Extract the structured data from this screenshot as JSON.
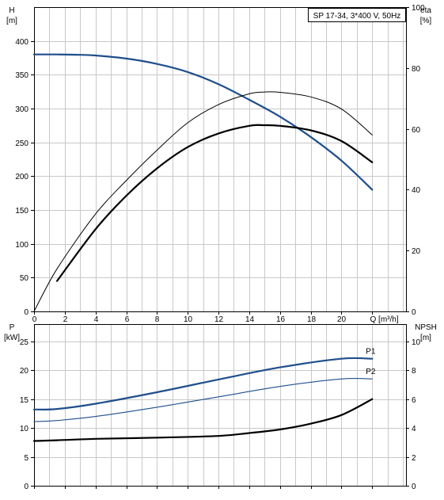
{
  "chart_data": [
    {
      "type": "line",
      "title": "SP 17-34, 3*400 V, 50Hz",
      "xlabel": "Q [m³/h]",
      "x_ticks": [
        0,
        2,
        4,
        6,
        8,
        10,
        12,
        14,
        16,
        18,
        20
      ],
      "x_tick_labels": [
        "0",
        "2",
        "4",
        "6",
        "8",
        "10",
        "12",
        "14",
        "16",
        "18",
        "20",
        "Q [m³/h]"
      ],
      "xlim": [
        0,
        24.2
      ],
      "left_axis": {
        "label_top": "H",
        "label_unit": "[m]",
        "ylim": [
          0,
          450
        ],
        "ticks": [
          0,
          50,
          100,
          150,
          200,
          250,
          300,
          350,
          400
        ]
      },
      "right_axis": {
        "label_top": "eta",
        "label_unit": "[%]",
        "ylim": [
          0,
          100
        ],
        "range_max_shown": 100,
        "ticks": [
          0,
          20,
          40,
          60,
          80,
          100
        ]
      },
      "grid": true,
      "series": [
        {
          "axis": "left",
          "color": "#1f4e8c",
          "width": 2.2,
          "x": [
            0,
            1.5,
            3,
            4,
            6,
            8,
            10,
            12,
            14,
            16,
            18,
            20,
            22
          ],
          "y": [
            380,
            380,
            379.5,
            378.5,
            374,
            366,
            354,
            336,
            313,
            288,
            258,
            223,
            180
          ]
        },
        {
          "axis": "right",
          "color": "#000000",
          "width": 1.0,
          "x": [
            0,
            1.5,
            4,
            6,
            8,
            10,
            12,
            14,
            15,
            16,
            18,
            20,
            22
          ],
          "y": [
            0,
            14,
            32,
            43,
            53,
            62,
            68,
            71.5,
            72.1,
            72,
            70.5,
            66.5,
            58
          ]
        },
        {
          "axis": "right",
          "color": "#000000",
          "width": 2.2,
          "x": [
            1.5,
            4,
            6,
            8,
            10,
            12,
            14,
            15,
            16,
            18,
            20,
            22
          ],
          "y": [
            10,
            27,
            38,
            47,
            54,
            58.5,
            61,
            61.2,
            61,
            59.5,
            56,
            49
          ]
        }
      ]
    },
    {
      "type": "line",
      "xlim": [
        0,
        24.2
      ],
      "left_axis": {
        "label_top": "P",
        "label_unit": "[kW]",
        "ylim": [
          0,
          28
        ],
        "ticks": [
          0,
          5,
          10,
          15,
          20,
          25
        ]
      },
      "right_axis": {
        "label_top": "NPSH",
        "label_unit": "[m]",
        "ylim": [
          0,
          11.2
        ],
        "ticks": [
          0,
          2,
          4,
          6,
          8,
          10
        ]
      },
      "grid": true,
      "series": [
        {
          "name": "P1",
          "axis": "left",
          "color": "#1f4e8c",
          "width": 2.2,
          "x": [
            0,
            1.5,
            4,
            8,
            12,
            16,
            20,
            22
          ],
          "y": [
            13.2,
            13.3,
            14.2,
            16.2,
            18.4,
            20.5,
            22,
            22
          ]
        },
        {
          "name": "P2",
          "axis": "left",
          "color": "#1f4e8c",
          "width": 1.1,
          "x": [
            0,
            1.5,
            4,
            8,
            12,
            16,
            20,
            22
          ],
          "y": [
            11.1,
            11.3,
            12,
            13.6,
            15.4,
            17.2,
            18.5,
            18.5
          ]
        },
        {
          "axis": "right",
          "color": "#000000",
          "width": 2.2,
          "x": [
            0,
            1.5,
            4,
            8,
            12,
            14,
            16,
            18,
            20,
            22
          ],
          "y": [
            3.1,
            3.15,
            3.25,
            3.33,
            3.45,
            3.65,
            3.9,
            4.3,
            4.9,
            6
          ]
        }
      ]
    }
  ]
}
